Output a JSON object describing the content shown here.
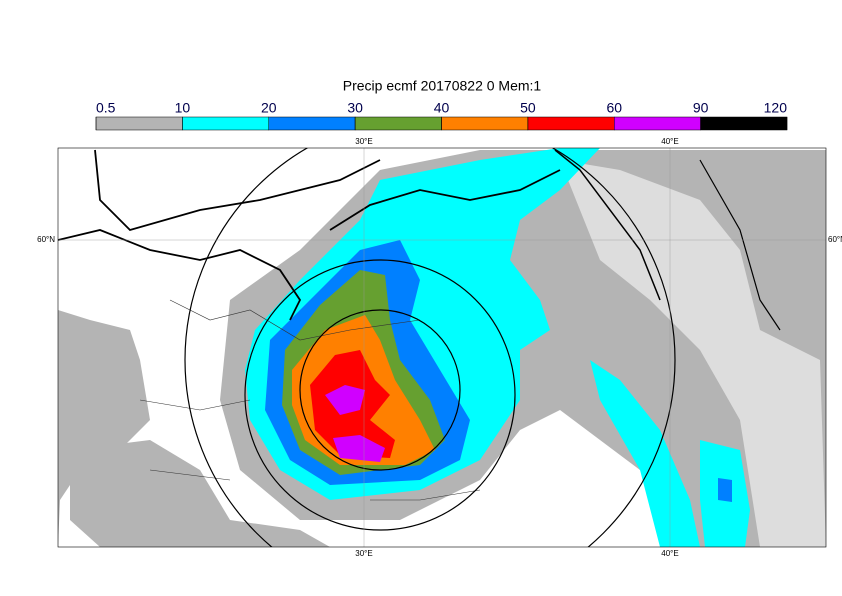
{
  "title": "Precip ecmf 20170822 0 Mem:1",
  "colorbar": {
    "ticks": [
      0.5,
      10,
      20,
      30,
      40,
      50,
      60,
      90,
      120
    ],
    "colors": [
      "#b4b4b4",
      "#00ffff",
      "#0080ff",
      "#66a030",
      "#ff8000",
      "#ff0000",
      "#d000ff",
      "#000000"
    ]
  },
  "map": {
    "lon_labels": [
      "30°E",
      "40°E"
    ],
    "lat_labels": [
      "60°N"
    ]
  }
}
